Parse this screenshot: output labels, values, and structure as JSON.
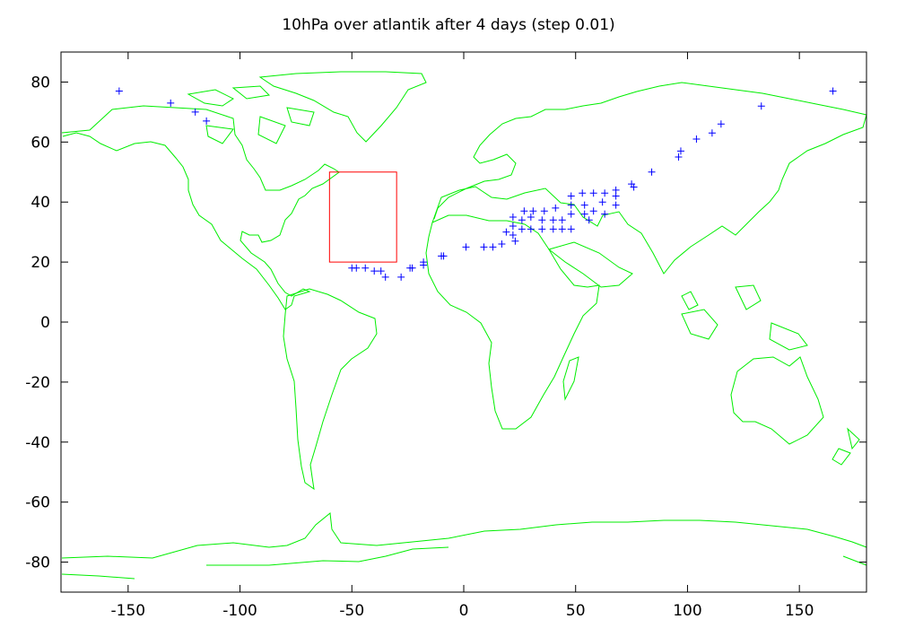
{
  "chart_data": {
    "type": "scatter",
    "title": "10hPa over atlantik after 4 days (step 0.01)",
    "xlabel": "",
    "ylabel": "",
    "xlim": [
      -180,
      180
    ],
    "ylim": [
      -90,
      90
    ],
    "x_ticks": [
      -150,
      -100,
      -50,
      0,
      50,
      100,
      150
    ],
    "y_ticks": [
      80,
      60,
      40,
      20,
      0,
      -20,
      -40,
      -60,
      -80
    ],
    "colors": {
      "coastline": "#00ee00",
      "points": "#0000ff",
      "region_box": "#ff0000",
      "axes": "#000000"
    },
    "region_box": {
      "lon": [
        -60,
        -30
      ],
      "lat": [
        20,
        50
      ]
    },
    "marker": "+",
    "points": [
      [
        -154,
        77
      ],
      [
        -131,
        73
      ],
      [
        -120,
        70
      ],
      [
        -115,
        67
      ],
      [
        133,
        72
      ],
      [
        165,
        77
      ],
      [
        115,
        66
      ],
      [
        111,
        63
      ],
      [
        104,
        61
      ],
      [
        97,
        57
      ],
      [
        96,
        55
      ],
      [
        84,
        50
      ],
      [
        75,
        46
      ],
      [
        76,
        45
      ],
      [
        68,
        44
      ],
      [
        68,
        42
      ],
      [
        68,
        39
      ],
      [
        63,
        43
      ],
      [
        62,
        40
      ],
      [
        63,
        36
      ],
      [
        58,
        43
      ],
      [
        58,
        37
      ],
      [
        56,
        34
      ],
      [
        53,
        43
      ],
      [
        54,
        39
      ],
      [
        54,
        36
      ],
      [
        48,
        42
      ],
      [
        48,
        39
      ],
      [
        48,
        36
      ],
      [
        48,
        31
      ],
      [
        44,
        34
      ],
      [
        44,
        31
      ],
      [
        41,
        38
      ],
      [
        40,
        34
      ],
      [
        40,
        31
      ],
      [
        36,
        37
      ],
      [
        35,
        34
      ],
      [
        35,
        31
      ],
      [
        31,
        37
      ],
      [
        30,
        35
      ],
      [
        30,
        31
      ],
      [
        27,
        37
      ],
      [
        26,
        34
      ],
      [
        26,
        31
      ],
      [
        22,
        35
      ],
      [
        22,
        32
      ],
      [
        22,
        29
      ],
      [
        23,
        27
      ],
      [
        19,
        30
      ],
      [
        17,
        26
      ],
      [
        13,
        25
      ],
      [
        9,
        25
      ],
      [
        1,
        25
      ],
      [
        -9,
        22
      ],
      [
        -10,
        22
      ],
      [
        -18,
        20
      ],
      [
        -18,
        19
      ],
      [
        -23,
        18
      ],
      [
        -24,
        18
      ],
      [
        -28,
        15
      ],
      [
        -35,
        15
      ],
      [
        -37,
        17
      ],
      [
        -40,
        17
      ],
      [
        -44,
        18
      ],
      [
        -48,
        18
      ],
      [
        -50,
        18
      ]
    ]
  }
}
